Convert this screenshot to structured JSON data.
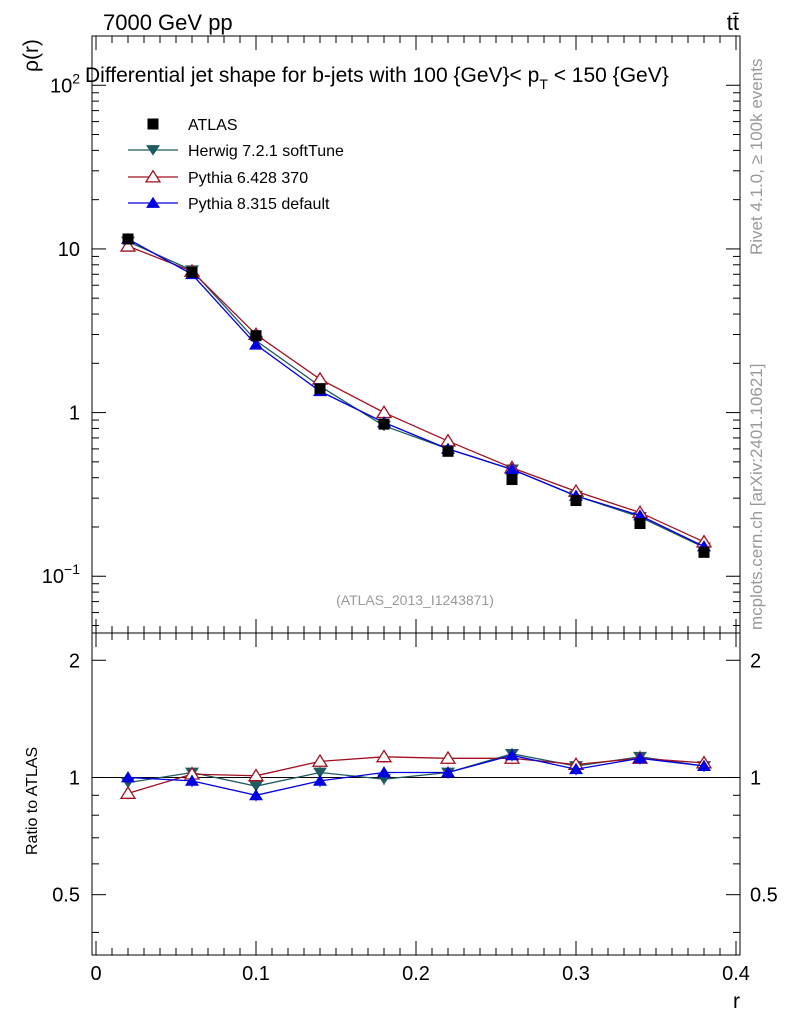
{
  "header": {
    "energy_label": "7000 GeV pp",
    "process_label": "tt̄",
    "title_main": "Differential jet shape for b-jets with 100 {GeV}",
    "title_lt1": "< p",
    "title_sub": "T",
    "title_rest": " < 150 {GeV}",
    "side_label_top": "Rivet 4.1.0, ≥ 100k events",
    "side_label_bottom": "mcplots.cern.ch [arXiv:2401.10621]",
    "analysis_id": "(ATLAS_2013_I1243871)"
  },
  "colors": {
    "atlas": "#000000",
    "herwig": "#1e5b60",
    "pythia6": "#a01020",
    "pythia8": "#0000e0"
  },
  "chart_data": [
    {
      "type": "line",
      "panel": "main",
      "ylabel": "ρ(r)",
      "xlabel": "r",
      "yscale": "log",
      "xlim": [
        -0.0025,
        0.4025
      ],
      "ylim": [
        0.045,
        200
      ],
      "y_ticks": [
        {
          "value": 100,
          "base": "10",
          "exp": "2"
        },
        {
          "value": 10,
          "base": "10",
          "exp": ""
        },
        {
          "value": 1,
          "base": "1",
          "exp": ""
        },
        {
          "value": 0.1,
          "base": "10",
          "exp": "−1"
        }
      ],
      "x": [
        0.02,
        0.06,
        0.1,
        0.14,
        0.18,
        0.22,
        0.26,
        0.3,
        0.34,
        0.38
      ],
      "series": [
        {
          "name": "ATLAS",
          "marker": "square",
          "values": [
            11.5,
            7.2,
            2.95,
            1.4,
            0.85,
            0.58,
            0.39,
            0.29,
            0.21,
            0.14
          ]
        },
        {
          "name": "Herwig 7.2.1 softTune",
          "marker": "triangle-down",
          "values": [
            11.1,
            7.4,
            2.75,
            1.45,
            0.83,
            0.6,
            0.45,
            0.31,
            0.23,
            0.15
          ]
        },
        {
          "name": "Pythia 6.428 370",
          "marker": "triangle-up-open",
          "values": [
            10.4,
            7.3,
            3.0,
            1.6,
            1.0,
            0.67,
            0.46,
            0.33,
            0.245,
            0.162
          ]
        },
        {
          "name": "Pythia 8.315 default",
          "marker": "triangle-up",
          "values": [
            11.5,
            7.0,
            2.6,
            1.35,
            0.87,
            0.6,
            0.45,
            0.31,
            0.235,
            0.152
          ]
        }
      ]
    },
    {
      "type": "line",
      "panel": "ratio",
      "ylabel": "Ratio to ATLAS",
      "xlabel": "r",
      "xlim": [
        -0.0025,
        0.4025
      ],
      "ylim": [
        0.35,
        2.35
      ],
      "y_ticks": [
        "0.5",
        "1",
        "2"
      ],
      "x_ticks": [
        "0",
        "0.1",
        "0.2",
        "0.3",
        "0.4"
      ],
      "x": [
        0.02,
        0.06,
        0.1,
        0.14,
        0.18,
        0.22,
        0.26,
        0.3,
        0.34,
        0.38
      ],
      "series": [
        {
          "name": "Herwig 7.2.1 softTune",
          "values": [
            0.97,
            1.03,
            0.95,
            1.03,
            0.99,
            1.03,
            1.15,
            1.07,
            1.13,
            1.07
          ]
        },
        {
          "name": "Pythia 6.428 370",
          "values": [
            0.91,
            1.02,
            1.01,
            1.1,
            1.13,
            1.12,
            1.12,
            1.08,
            1.12,
            1.09
          ]
        },
        {
          "name": "Pythia 8.315 default",
          "values": [
            1.0,
            0.98,
            0.9,
            0.98,
            1.03,
            1.03,
            1.14,
            1.05,
            1.12,
            1.07
          ]
        }
      ]
    }
  ]
}
